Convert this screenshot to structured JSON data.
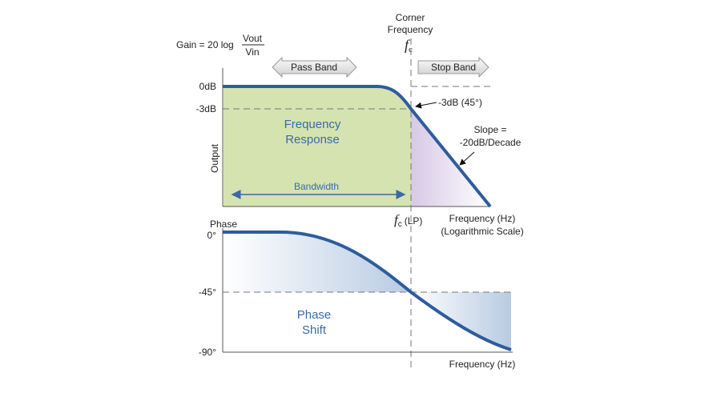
{
  "gain_formula": {
    "prefix": "Gain = 20 log",
    "numerator": "Vout",
    "denominator": "Vin"
  },
  "corner": {
    "line1": "Corner",
    "line2": "Frequency",
    "symbol": "f",
    "subscript": "c"
  },
  "bands": {
    "pass": "Pass Band",
    "stop": "Stop Band"
  },
  "magnitude_plot": {
    "tick_0": "0dB",
    "tick_3": "-3dB",
    "y_label": "Output",
    "point_label": "-3dB (45°)",
    "region_line1": "Frequency",
    "region_line2": "Response",
    "slope_line1": "Slope =",
    "slope_line2": "-20dB/Decade",
    "bandwidth": "Bandwidth",
    "fc_symbol": "f",
    "fc_subscript": "c",
    "fc_suffix": "(LP)",
    "x_label_line1": "Frequency (Hz)",
    "x_label_line2": "(Logarithmic Scale)"
  },
  "phase_plot": {
    "y_label": "Phase",
    "tick_0": "0°",
    "tick_45": "-45°",
    "tick_90": "-90°",
    "region_line1": "Phase",
    "region_line2": "Shift",
    "x_label": "Frequency (Hz)"
  }
}
